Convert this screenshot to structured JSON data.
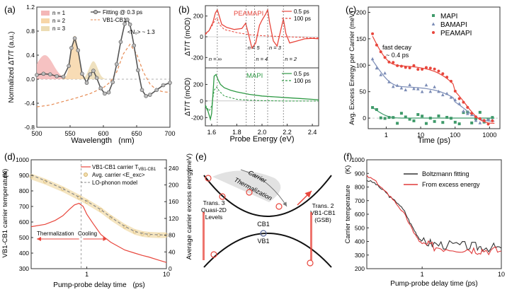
{
  "figure": {
    "colors": {
      "red": "#e8463c",
      "green": "#2e9a44",
      "gray": "#555555",
      "blue_markers": "#5a6a9c",
      "n1_fill": "#f4b7b7",
      "n2_fill": "#f7d6a8",
      "n3_fill": "#ecdcb4",
      "orange_dash": "#e68a52",
      "cooling_fill": "#f3dfb0"
    }
  },
  "chart_data": [
    {
      "panel_label": "(a)",
      "type": "line",
      "xlabel": "Wavelength",
      "xunit": "(nm)",
      "ylabel": "Normalized ΔT/T (a.u.)",
      "xlim": [
        500,
        700
      ],
      "ylim": [
        -0.8,
        1.2
      ],
      "xticks": [
        "500",
        "550",
        "600",
        "650",
        "700"
      ],
      "yticks": [
        "-0.8",
        "-0.4",
        "0.0",
        "0.4",
        "0.8",
        "1.2"
      ],
      "legend": [
        "n = 1",
        "n = 2",
        "n = 3"
      ],
      "legend2": [
        "Fitting @ 0.3 ps",
        "VB1-CB1"
      ],
      "annotation": "<N₀> ~ 1.3",
      "series": [
        {
          "name": "n = 1",
          "kind": "gauss",
          "center": 512,
          "width": 18,
          "amp": 0.4
        },
        {
          "name": "n = 2",
          "kind": "gauss",
          "center": 557,
          "width": 8,
          "amp": 0.73
        },
        {
          "name": "n = 3",
          "kind": "gauss",
          "center": 585,
          "width": 9,
          "amp": 0.3
        },
        {
          "name": "Fitting @ 0.3 ps",
          "x": [
            500,
            510,
            520,
            530,
            540,
            548,
            552,
            557,
            562,
            568,
            575,
            580,
            585,
            590,
            596,
            602,
            608,
            614,
            620,
            626,
            632,
            636,
            640,
            646,
            652,
            658,
            664,
            670,
            680,
            690,
            700
          ],
          "y": [
            0.07,
            0.09,
            0.08,
            0.05,
            0.04,
            0.22,
            0.52,
            0.68,
            0.48,
            0.09,
            -0.06,
            0.08,
            0.14,
            0.02,
            -0.15,
            -0.24,
            -0.22,
            -0.05,
            0.25,
            0.62,
            0.92,
            0.99,
            0.91,
            0.56,
            0.15,
            -0.18,
            -0.28,
            -0.26,
            -0.18,
            -0.1,
            -0.06
          ]
        },
        {
          "name": "VB1-CB1",
          "x": [
            500,
            520,
            540,
            560,
            580,
            600,
            610,
            620,
            630,
            640,
            650,
            660,
            670,
            680,
            690,
            700
          ],
          "y": [
            -0.46,
            -0.43,
            -0.37,
            -0.31,
            -0.24,
            -0.14,
            -0.05,
            0.12,
            0.42,
            0.58,
            0.42,
            0.12,
            -0.08,
            -0.18,
            -0.21,
            -0.22
          ]
        }
      ]
    },
    {
      "panel_label": "(b)",
      "type": "line",
      "xlabel": "Probe Energy (eV)",
      "ylabel_top": "ΔT/T (mOD)",
      "ylabel_bottom": "ΔT/T (mOD)",
      "xlim": [
        1.55,
        2.45
      ],
      "xticks": [
        "1.6",
        "1.8",
        "2.0",
        "2.2",
        "2.4"
      ],
      "top": {
        "title": "PEAMAPI",
        "ylim": [
          -300,
          300
        ],
        "yticks": [
          "200",
          "0",
          "-200"
        ],
        "legend": [
          "0.5 ps",
          "100 ps"
        ],
        "markers": [
          {
            "label": "n = ∞",
            "x": 1.645
          },
          {
            "label": "n = 5",
            "x": 1.875
          },
          {
            "label": "n = 4",
            "x": 1.94
          },
          {
            "label": "n = 3",
            "x": 2.045
          },
          {
            "label": "n = 2",
            "x": 2.17
          }
        ],
        "series": [
          {
            "name": "0.5 ps",
            "x": [
              1.55,
              1.58,
              1.61,
              1.63,
              1.645,
              1.66,
              1.68,
              1.72,
              1.78,
              1.84,
              1.87,
              1.89,
              1.92,
              1.95,
              1.98,
              2.0,
              2.03,
              2.045,
              2.06,
              2.09,
              2.12,
              2.16,
              2.17,
              2.19,
              2.22,
              2.28,
              2.34,
              2.4,
              2.45
            ],
            "y": [
              30,
              60,
              140,
              230,
              260,
              200,
              120,
              90,
              70,
              80,
              130,
              40,
              -110,
              -60,
              110,
              160,
              220,
              260,
              140,
              -40,
              -90,
              120,
              170,
              30,
              -60,
              -40,
              -20,
              -15,
              -20
            ]
          },
          {
            "name": "100 ps",
            "x": [
              1.55,
              1.58,
              1.61,
              1.63,
              1.645,
              1.66,
              1.7,
              1.8,
              1.9,
              2.0,
              2.1,
              2.2,
              2.3,
              2.4,
              2.45
            ],
            "y": [
              20,
              60,
              120,
              170,
              180,
              120,
              70,
              40,
              20,
              10,
              5,
              0,
              -5,
              -10,
              -10
            ]
          }
        ]
      },
      "bottom": {
        "title": "MAPI",
        "ylim": [
          -300,
          400
        ],
        "yticks": [
          "200",
          "0",
          "-200"
        ],
        "legend": [
          "0.5 ps",
          "100 ps"
        ],
        "series": [
          {
            "name": "0.5 ps",
            "x": [
              1.55,
              1.57,
              1.59,
              1.6,
              1.61,
              1.62,
              1.635,
              1.65,
              1.67,
              1.7,
              1.75,
              1.8,
              1.9,
              2.0,
              2.1,
              2.2,
              2.3,
              2.4,
              2.45
            ],
            "y": [
              -60,
              -120,
              -220,
              -150,
              80,
              300,
              320,
              260,
              200,
              160,
              130,
              110,
              80,
              60,
              50,
              40,
              30,
              20,
              15
            ]
          },
          {
            "name": "100 ps",
            "x": [
              1.55,
              1.58,
              1.6,
              1.62,
              1.64,
              1.66,
              1.7,
              1.8,
              1.9,
              2.0,
              2.2,
              2.45
            ],
            "y": [
              -50,
              -120,
              -60,
              130,
              170,
              120,
              60,
              20,
              10,
              5,
              0,
              0
            ]
          }
        ]
      }
    },
    {
      "panel_label": "(c)",
      "type": "scatter",
      "xlabel": "Time (ps)",
      "ylabel": "Avg. Excess Energy per Carrier (meV)",
      "xscale": "log",
      "xlim": [
        0.3,
        2000
      ],
      "ylim": [
        -20,
        210
      ],
      "xticks": [
        "1",
        "10",
        "100",
        "1000"
      ],
      "yticks": [
        "0",
        "50",
        "100",
        "150",
        "200"
      ],
      "legend": [
        "MAPI",
        "BAMAPI",
        "PEAMAPI"
      ],
      "annotation": "fast decay ~ 0.4 ps",
      "series": [
        {
          "name": "MAPI",
          "marker": "square",
          "color": "#3f9a6a",
          "amp": 55,
          "tau": 0.4,
          "slow": 0,
          "noise": 12
        },
        {
          "name": "BAMAPI",
          "marker": "triangle",
          "color": "#7b8cb6",
          "amp": 110,
          "tau": 0.5,
          "slow": 60,
          "noise": 8
        },
        {
          "name": "PEAMAPI",
          "marker": "circle",
          "color": "#e8463c",
          "amp": 150,
          "tau": 0.4,
          "slow": 100,
          "noise": 5
        }
      ]
    },
    {
      "panel_label": "(d)",
      "type": "line",
      "xlabel": "Pump-probe delay time",
      "xunit": "(ps)",
      "ylabel": "VB1-CB1 carrier temperature",
      "yunit": "(K)",
      "ylabel_right": "Average carrier excess energy",
      "yunit_right": "(meV)",
      "xscale": "log",
      "xlim": [
        0.2,
        10
      ],
      "ylim": [
        300,
        1000
      ],
      "ylim_right": [
        0,
        260
      ],
      "xticks": [
        "1",
        "10"
      ],
      "yticks": [
        "300",
        "400",
        "500",
        "600",
        "700",
        "800",
        "900",
        "1000"
      ],
      "yticks_right": [
        "0",
        "40",
        "80",
        "120",
        "160",
        "200",
        "240"
      ],
      "legend": [
        "VB1-CB1 carrier T",
        "Avg. carrier <E_exc>",
        "LO-phonon model"
      ],
      "legend_sub": "VB1-CB1",
      "annotations": [
        "Thermalization",
        "Cooling"
      ],
      "series": [
        {
          "name": "VB1-CB1 carrier T",
          "x": [
            0.2,
            0.3,
            0.4,
            0.5,
            0.6,
            0.7,
            0.8,
            0.9,
            1.0,
            1.2,
            1.5,
            2.0,
            3.0,
            4.0,
            5.0,
            6.0,
            8.0,
            10.0
          ],
          "y": [
            570,
            585,
            610,
            640,
            680,
            710,
            720,
            700,
            650,
            590,
            520,
            470,
            420,
            400,
            385,
            375,
            355,
            340
          ]
        },
        {
          "name": "Avg. carrier <E_exc>",
          "x": [
            0.2,
            0.3,
            0.5,
            0.8,
            1.0,
            1.5,
            2.0,
            3.0,
            4.0,
            5.0,
            6.0,
            8.0,
            10.0
          ],
          "y": [
            220,
            208,
            190,
            170,
            160,
            140,
            122,
            100,
            88,
            83,
            81,
            80,
            80
          ]
        },
        {
          "name": "LO-phonon model",
          "x": [
            0.2,
            0.3,
            0.5,
            0.8,
            1.0,
            1.5,
            2.0,
            3.0,
            4.0,
            5.0,
            6.0,
            8.0,
            10.0
          ],
          "y": [
            224,
            210,
            191,
            171,
            161,
            141,
            123,
            101,
            89,
            84,
            82,
            81,
            80
          ]
        }
      ]
    },
    {
      "panel_label": "(f)",
      "type": "line",
      "xlabel": "Pump-probe delay time (ps)",
      "ylabel": "Carrier temperature",
      "yunit": "(K)",
      "xscale": "log",
      "xlim": [
        0.2,
        10
      ],
      "ylim": [
        200,
        1000
      ],
      "xticks": [
        "1",
        "10"
      ],
      "yticks": [
        "200",
        "300",
        "400",
        "500",
        "600",
        "700",
        "800",
        "900",
        "1000"
      ],
      "legend": [
        "Boltzmann fitting",
        "From excess energy"
      ],
      "series": [
        {
          "name": "Boltzmann fitting",
          "color": "#333333",
          "x": [
            0.2,
            0.25,
            0.3,
            0.35,
            0.4,
            0.5,
            0.6,
            0.7,
            0.8,
            0.9,
            1.0,
            1.2,
            1.5,
            2.0,
            3.0,
            4.0,
            5.0,
            6.0,
            8.0,
            10.0
          ],
          "y": [
            850,
            830,
            790,
            760,
            720,
            680,
            620,
            540,
            480,
            430,
            400,
            390,
            380,
            375,
            370,
            365,
            360,
            360,
            355,
            350
          ]
        },
        {
          "name": "From excess energy",
          "color": "#e03a3a",
          "x": [
            0.2,
            0.25,
            0.3,
            0.35,
            0.4,
            0.5,
            0.6,
            0.7,
            0.8,
            0.9,
            1.0,
            1.2,
            1.5,
            2.0,
            3.0,
            4.0,
            5.0,
            6.0,
            8.0,
            10.0
          ],
          "y": [
            880,
            850,
            800,
            760,
            730,
            660,
            600,
            520,
            460,
            410,
            380,
            370,
            360,
            355,
            350,
            345,
            340,
            340,
            335,
            330
          ]
        }
      ]
    }
  ],
  "diagram": {
    "panel_label": "(e)",
    "labels": {
      "carrier": "Carrier",
      "thermalization": "Thermalization",
      "cb1": "CB1",
      "vb1": "VB1",
      "left_note": [
        "Trans. 3",
        "Quasi-2D",
        "Levels"
      ],
      "right_note": [
        "Trans. 2",
        "VB1-CB1",
        "(GSB)"
      ]
    }
  }
}
